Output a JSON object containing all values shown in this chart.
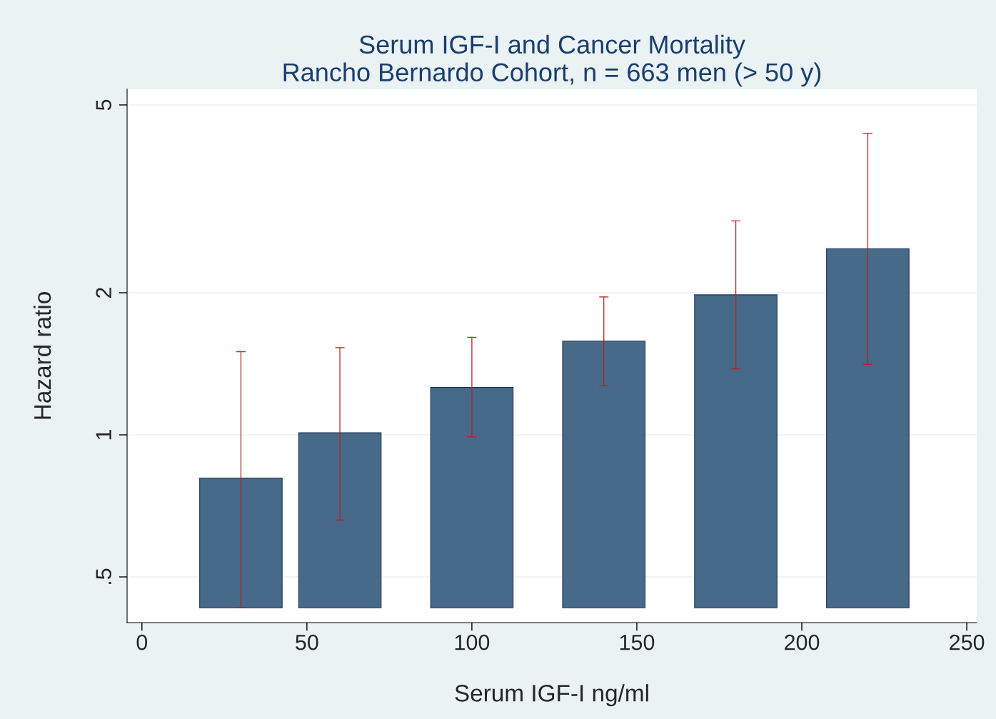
{
  "chart_data": {
    "type": "bar",
    "title": "Serum IGF-I and Cancer Mortality\nRancho Bernardo Cohort, n = 663 men (> 50 y)",
    "xlabel": "Serum IGF-I ng/ml",
    "ylabel": "Hazard ratio",
    "x": [
      30,
      60,
      100,
      140,
      180,
      220
    ],
    "base": [
      0.43,
      0.43,
      0.43,
      0.43,
      0.43,
      0.43
    ],
    "values": [
      0.38,
      0.58,
      0.83,
      1.15,
      1.55,
      2.05
    ],
    "errors": [
      [
        0.43,
        1.5
      ],
      [
        0.66,
        1.53
      ],
      [
        0.99,
        1.61
      ],
      [
        1.27,
        1.96
      ],
      [
        1.38,
        2.84
      ],
      [
        1.41,
        4.35
      ]
    ],
    "color": "#476a8a",
    "log": true,
    "xlim": [
      -4.5,
      253
    ],
    "xticks": [
      0,
      50,
      100,
      150,
      200,
      250
    ],
    "ylim": [
      0.4,
      5.4
    ],
    "yticks": [
      {
        "value": 0.5,
        "label": ".5"
      },
      1,
      2,
      5
    ],
    "grid": "y"
  }
}
